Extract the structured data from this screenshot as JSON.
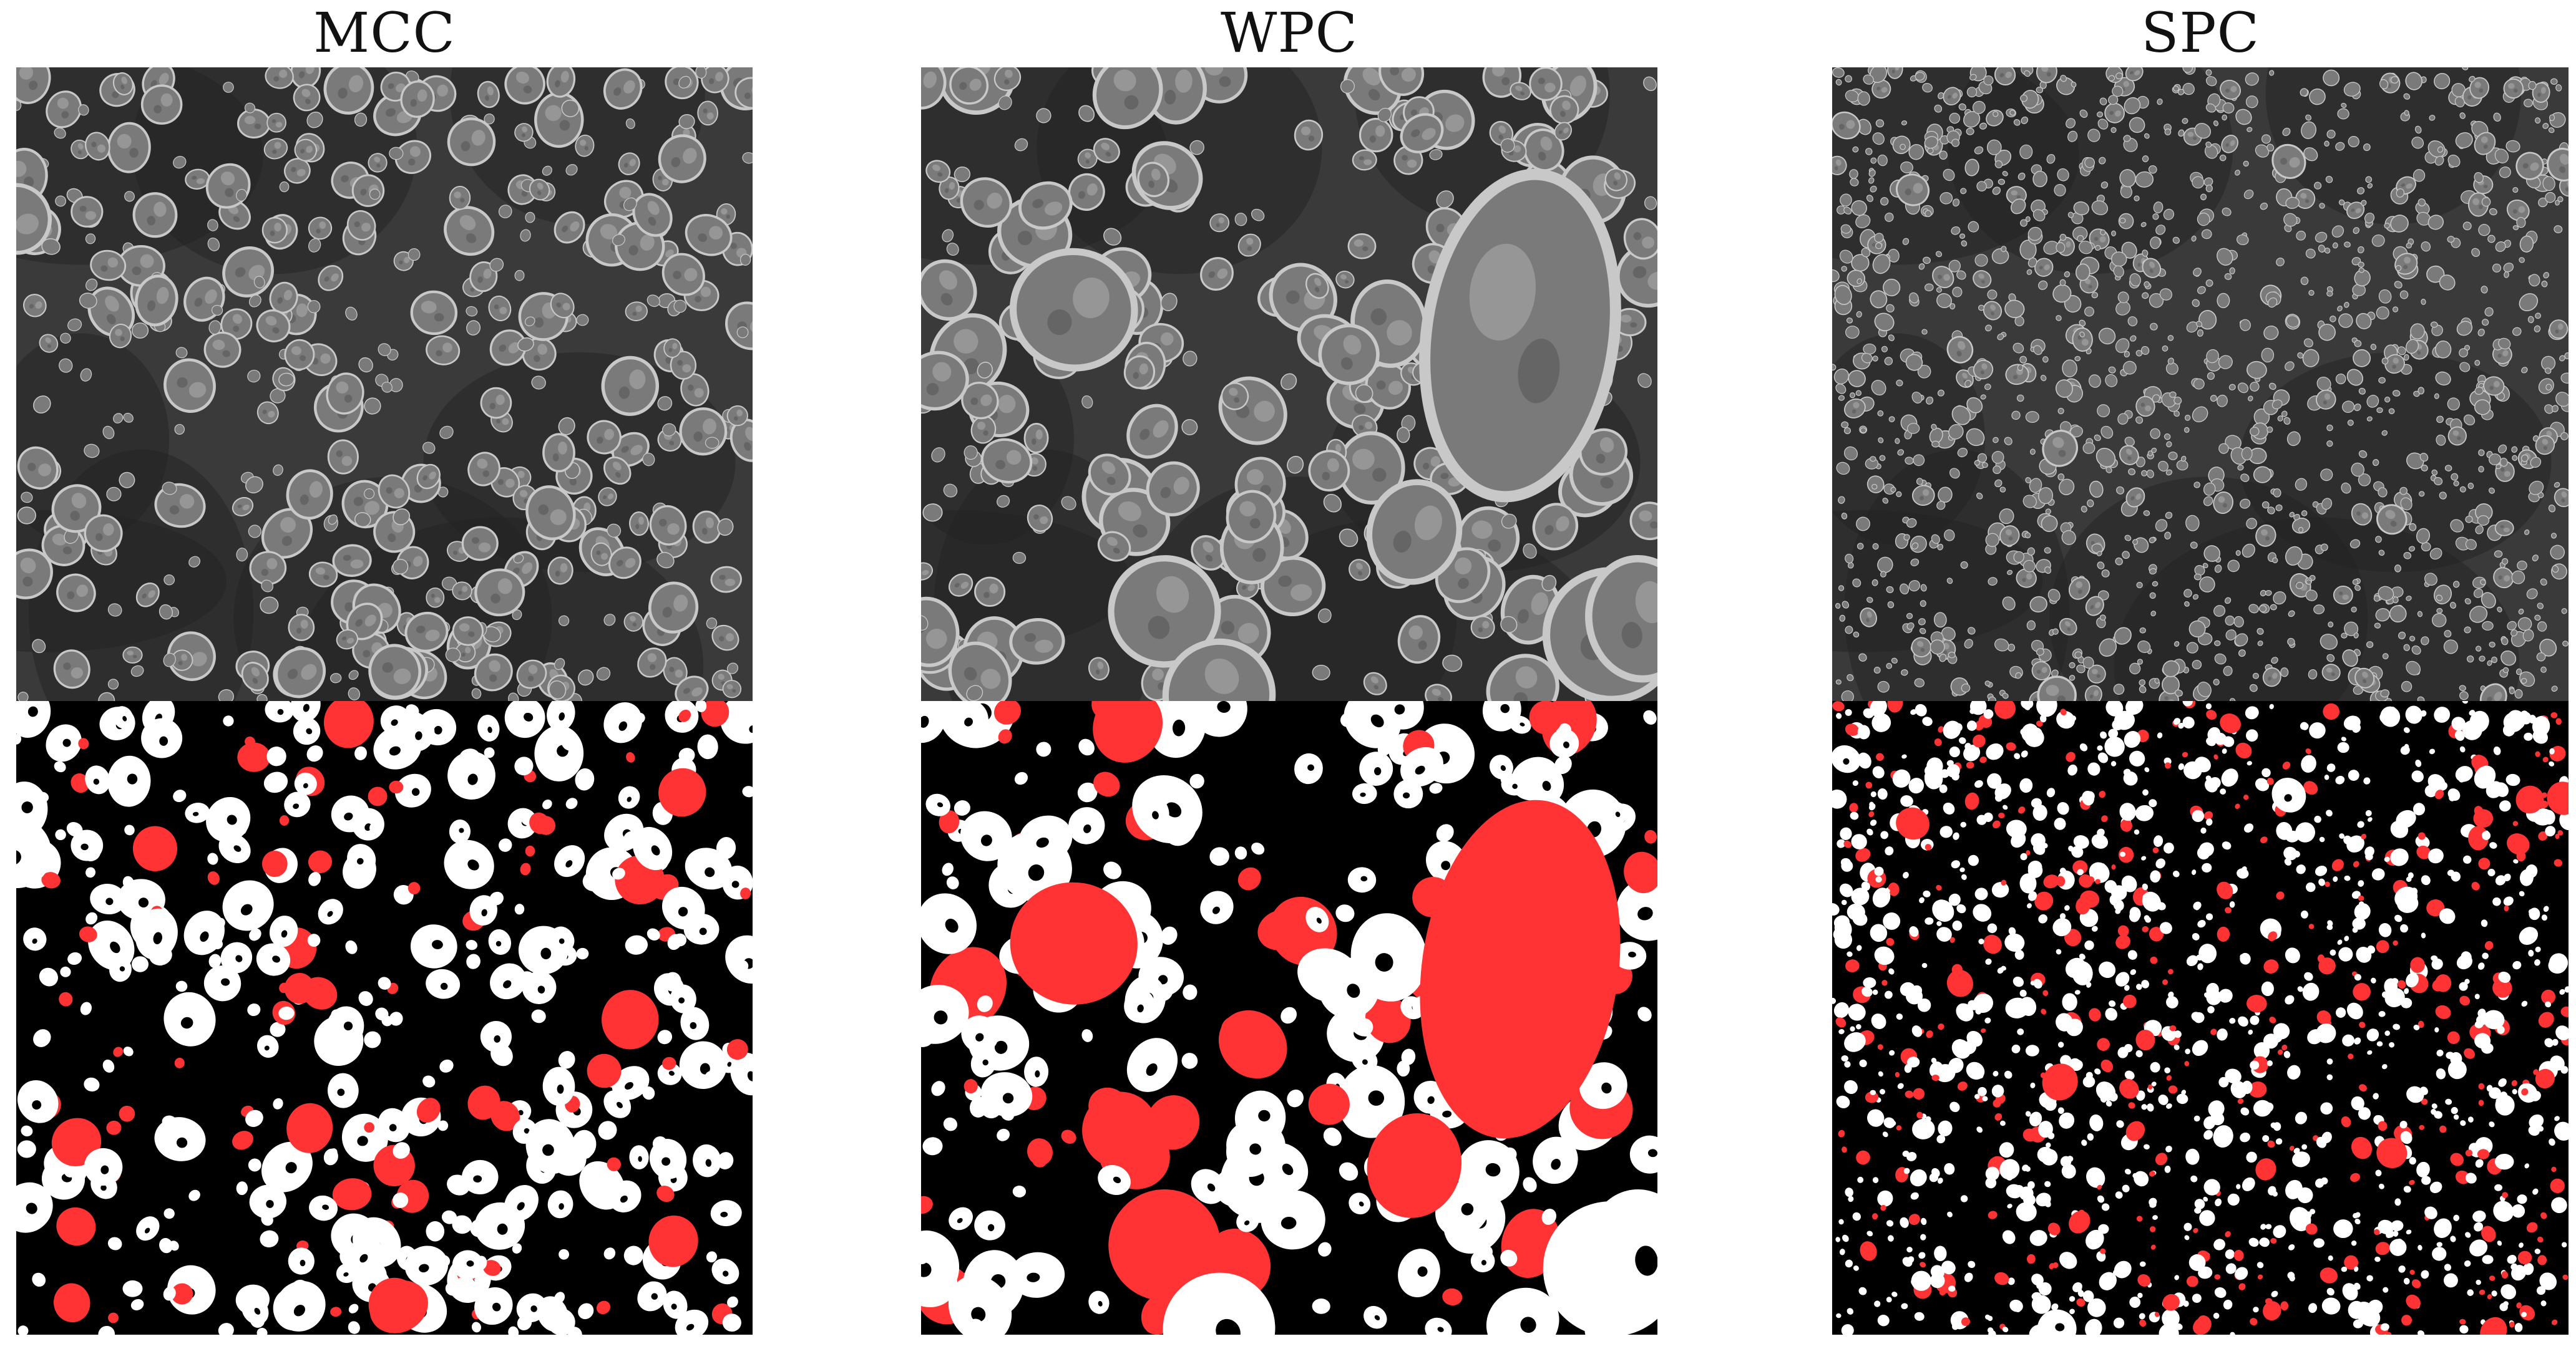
{
  "columns": [
    {
      "id": "mcc",
      "title": "MCC"
    },
    {
      "id": "wpc",
      "title": "WPC"
    },
    {
      "id": "spc",
      "title": "SPC"
    }
  ],
  "colors": {
    "sem_background": "#3a3a3a",
    "sem_particle": "#8e8e8e",
    "mask_background": "#000000",
    "mask_particle": "#ffffff",
    "mask_highlight": "#ff3333"
  }
}
